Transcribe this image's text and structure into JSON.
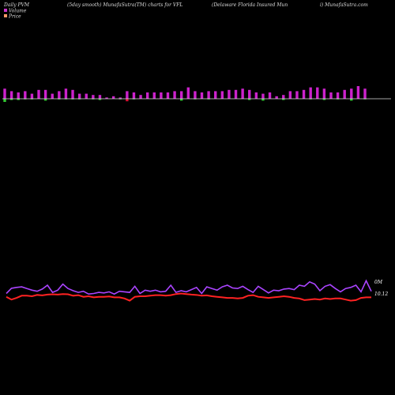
{
  "header": {
    "left": "Daily PVM",
    "center": "(5day smooth) MunafaSutra(TM) charts for VFL",
    "right_a": "(Delaware  Florida  Insured  Mun",
    "right_b": "i) MunafaSutra.com"
  },
  "legend": [
    {
      "label": "Volume",
      "color": "#cc33cc"
    },
    {
      "label": "Price",
      "color": "#ff9966"
    }
  ],
  "colors": {
    "volume_up": "#cc22cc",
    "volume_down": "#33cc33",
    "volume_down_red": "#dd1133",
    "volume_line": "#aa44ff",
    "price_line": "#ff2222",
    "baseline": "#dddddd",
    "background": "#000000"
  },
  "chart_data": {
    "type": "bar+line",
    "volume_bars": {
      "up": [
        0.8,
        0.6,
        0.5,
        0.6,
        0.4,
        0.7,
        0.7,
        0.4,
        0.6,
        0.8,
        0.7,
        0.4,
        0.4,
        0.3,
        0.3,
        0.1,
        0.2,
        0.1,
        0.6,
        0.5,
        0.3,
        0.5,
        0.5,
        0.5,
        0.5,
        0.6,
        0.6,
        0.9,
        0.6,
        0.5,
        0.6,
        0.6,
        0.6,
        0.7,
        0.7,
        0.8,
        0.7,
        0.5,
        0.4,
        0.5,
        0.2,
        0.3,
        0.6,
        0.6,
        0.7,
        0.9,
        0.9,
        0.8,
        0.5,
        0.5,
        0.7,
        0.8,
        1.0,
        0.8
      ],
      "down": [
        0.5,
        0.2,
        0.2,
        0.1,
        0.1,
        0.0,
        0.3,
        0.0,
        0.1,
        0.1,
        0.1,
        0.1,
        0.0,
        0.1,
        0.2,
        0.0,
        0.0,
        0.1,
        0.4,
        0.1,
        0.0,
        0.0,
        0.0,
        0.0,
        0.0,
        0.0,
        0.3,
        0.0,
        0.1,
        0.0,
        0.1,
        0.0,
        0.0,
        0.0,
        0.0,
        0.0,
        0.2,
        0.0,
        0.3,
        0.0,
        0.0,
        0.2,
        0.0,
        0.0,
        0.0,
        0.1,
        0.0,
        0.2,
        0.0,
        0.1,
        0.0,
        0.3,
        0.0,
        0.1
      ],
      "down_red_index": 18
    },
    "volume_line": [
      0.25,
      0.72,
      0.8,
      0.85,
      0.7,
      0.55,
      0.45,
      0.65,
      1.0,
      0.35,
      0.55,
      1.1,
      0.7,
      0.5,
      0.35,
      0.45,
      0.2,
      0.25,
      0.35,
      0.3,
      0.4,
      0.2,
      0.45,
      0.4,
      0.35,
      0.9,
      0.25,
      0.55,
      0.45,
      0.55,
      0.4,
      0.45,
      1.0,
      0.35,
      0.5,
      0.4,
      0.6,
      0.8,
      0.25,
      0.85,
      0.7,
      0.55,
      0.85,
      1.0,
      0.75,
      0.7,
      0.9,
      0.6,
      0.35,
      0.9,
      0.6,
      0.3,
      0.55,
      0.5,
      0.65,
      0.7,
      0.6,
      1.0,
      0.9,
      1.3,
      1.1,
      0.5,
      0.9,
      1.05,
      0.7,
      0.4,
      0.7,
      0.8,
      1.0,
      0.4,
      1.4,
      0.45
    ],
    "price_line": [
      0.45,
      0.2,
      0.35,
      0.55,
      0.55,
      0.5,
      0.62,
      0.58,
      0.65,
      0.68,
      0.65,
      0.7,
      0.68,
      0.55,
      0.6,
      0.45,
      0.5,
      0.4,
      0.45,
      0.45,
      0.48,
      0.4,
      0.4,
      0.3,
      0.1,
      0.45,
      0.5,
      0.5,
      0.55,
      0.6,
      0.6,
      0.55,
      0.6,
      0.7,
      0.75,
      0.7,
      0.65,
      0.62,
      0.55,
      0.58,
      0.5,
      0.45,
      0.4,
      0.35,
      0.35,
      0.3,
      0.35,
      0.55,
      0.6,
      0.45,
      0.4,
      0.35,
      0.4,
      0.45,
      0.5,
      0.45,
      0.35,
      0.3,
      0.15,
      0.2,
      0.25,
      0.2,
      0.3,
      0.25,
      0.3,
      0.3,
      0.2,
      0.1,
      0.15,
      0.35,
      0.4,
      0.4
    ],
    "labels": {
      "volume_value": "0M",
      "price_value": "10.12"
    }
  }
}
